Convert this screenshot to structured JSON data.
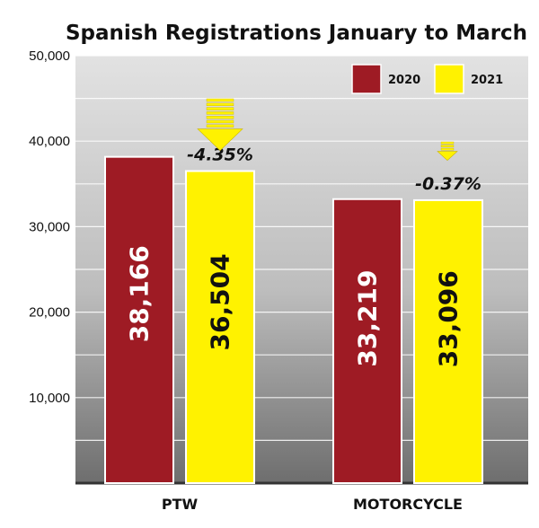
{
  "chart_data": {
    "type": "bar",
    "title": "Spanish Registrations January to March",
    "xlabel": "",
    "ylabel": "",
    "categories": [
      "PTW",
      "MOTORCYCLE"
    ],
    "series": [
      {
        "name": "2020",
        "values": [
          38166,
          33219
        ],
        "labels": [
          "38,166",
          "33,219"
        ],
        "color": "#9e1b24",
        "label_color": "#ffffff"
      },
      {
        "name": "2021",
        "values": [
          36504,
          33096
        ],
        "labels": [
          "36,504",
          "33,096"
        ],
        "color": "#fff200",
        "label_color": "#111111"
      }
    ],
    "changes": [
      "-4.35%",
      "-0.37%"
    ],
    "ylim": [
      0,
      50000
    ],
    "yticks": [
      10000,
      20000,
      30000,
      40000,
      50000
    ],
    "ytick_labels": [
      "10,000",
      "20,000",
      "30,000",
      "40,000",
      "50,000"
    ],
    "grid": true,
    "legend_position": "top-right"
  }
}
